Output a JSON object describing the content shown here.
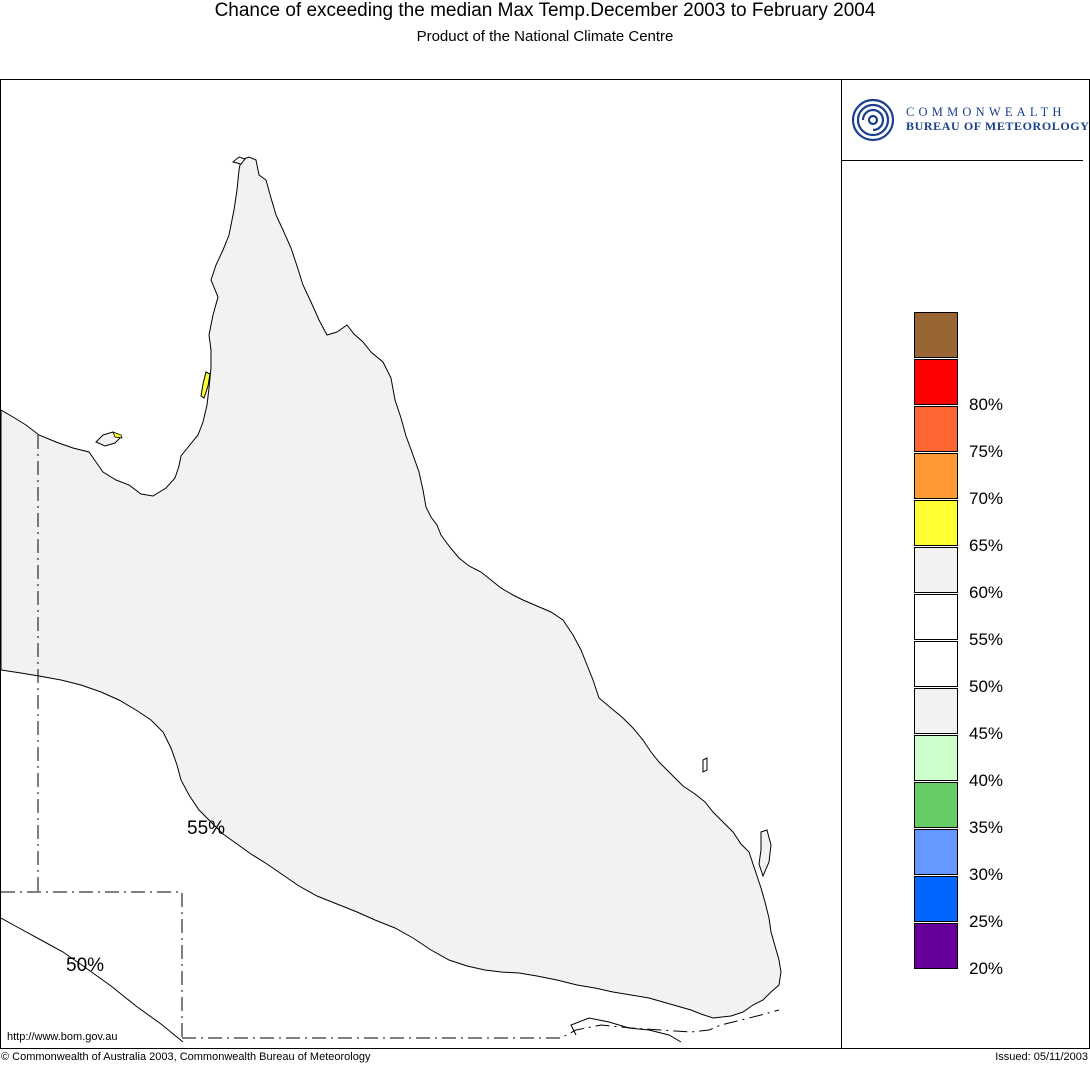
{
  "header": {
    "title": "Chance of exceeding the median Max Temp.December 2003 to February 2004",
    "subtitle": "Product of the National Climate Centre"
  },
  "logo": {
    "line1": "COMMONWEALTH",
    "line2": "BUREAU OF METEOROLOGY",
    "icon": "bom-spiral-logo-icon",
    "color": "#1a3f8c"
  },
  "map": {
    "contour_labels": [
      "55%",
      "50%"
    ],
    "url": "http://www.bom.gov.au",
    "colors": {
      "land_55_60": "#f2f2f2",
      "land_60_65": "#ffff33",
      "water": "#ffffff"
    }
  },
  "legend": {
    "items": [
      {
        "label": "",
        "color": "#996633"
      },
      {
        "label": "80%",
        "color": "#ff0000"
      },
      {
        "label": "75%",
        "color": "#ff6633"
      },
      {
        "label": "70%",
        "color": "#ff9933"
      },
      {
        "label": "65%",
        "color": "#ffff33"
      },
      {
        "label": "60%",
        "color": "#f2f2f2"
      },
      {
        "label": "55%",
        "color": "#ffffff"
      },
      {
        "label": "50%",
        "color": "#ffffff"
      },
      {
        "label": "45%",
        "color": "#f2f2f2"
      },
      {
        "label": "40%",
        "color": "#ccffcc"
      },
      {
        "label": "35%",
        "color": "#66cc66"
      },
      {
        "label": "30%",
        "color": "#6699ff"
      },
      {
        "label": "25%",
        "color": "#0066ff"
      },
      {
        "label": "20%",
        "color": "#660099"
      }
    ]
  },
  "footer": {
    "copyright": "© Commonwealth of Australia 2003, Commonwealth Bureau of Meteorology",
    "issued": "Issued: 05/11/2003"
  }
}
